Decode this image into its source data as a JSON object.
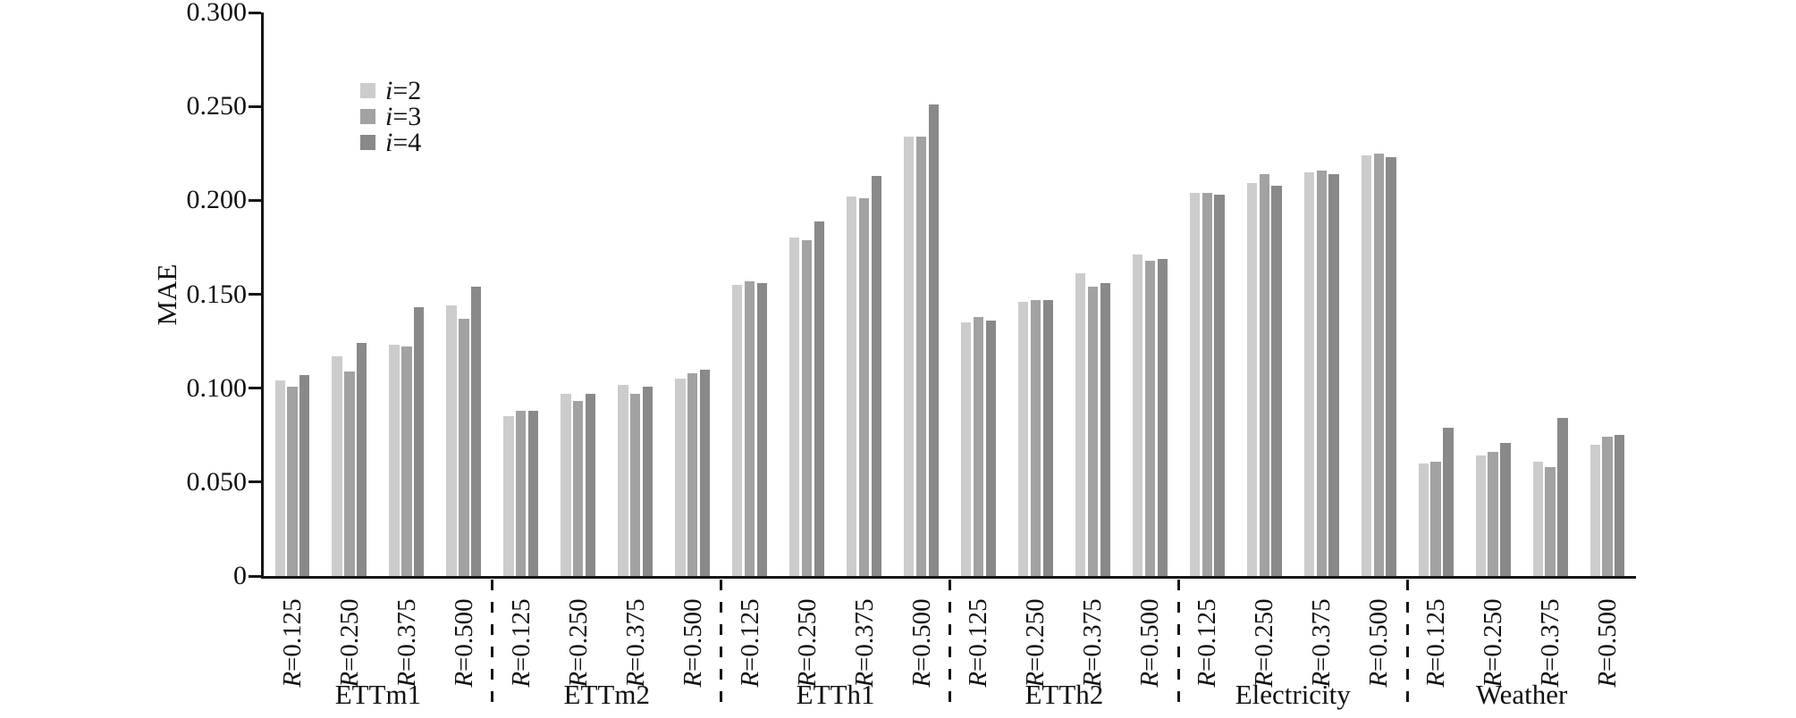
{
  "chart_data": {
    "type": "bar",
    "title": "",
    "ylabel": "MAE",
    "ylim": [
      0,
      0.3
    ],
    "grid": false,
    "y_ticks": [
      {
        "value": 0.0,
        "label": "0"
      },
      {
        "value": 0.05,
        "label": "0.050"
      },
      {
        "value": 0.1,
        "label": "0.100"
      },
      {
        "value": 0.15,
        "label": "0.150"
      },
      {
        "value": 0.2,
        "label": "0.200"
      },
      {
        "value": 0.25,
        "label": "0.250"
      },
      {
        "value": 0.3,
        "label": "0.300"
      }
    ],
    "legend": {
      "position": "inside-top-left",
      "items": [
        "i=2",
        "i=3",
        "i=4"
      ]
    },
    "series": [
      {
        "name": "i=2",
        "color": "#cccccc"
      },
      {
        "name": "i=3",
        "color": "#a2a2a2"
      },
      {
        "name": "i=4",
        "color": "#898989"
      }
    ],
    "categories": [
      "R=0.125",
      "R=0.250",
      "R=0.375",
      "R=0.500"
    ],
    "groups": [
      {
        "label": "ETTm1",
        "values": [
          [
            0.104,
            0.101,
            0.107
          ],
          [
            0.117,
            0.109,
            0.124
          ],
          [
            0.123,
            0.122,
            0.143
          ],
          [
            0.144,
            0.137,
            0.154
          ]
        ]
      },
      {
        "label": "ETTm2",
        "values": [
          [
            0.085,
            0.088,
            0.088
          ],
          [
            0.097,
            0.093,
            0.097
          ],
          [
            0.102,
            0.097,
            0.101
          ],
          [
            0.105,
            0.108,
            0.11
          ]
        ]
      },
      {
        "label": "ETTh1",
        "values": [
          [
            0.155,
            0.157,
            0.156
          ],
          [
            0.18,
            0.179,
            0.189
          ],
          [
            0.202,
            0.201,
            0.213
          ],
          [
            0.234,
            0.234,
            0.251
          ]
        ]
      },
      {
        "label": "ETTh2",
        "values": [
          [
            0.135,
            0.138,
            0.136
          ],
          [
            0.146,
            0.147,
            0.147
          ],
          [
            0.161,
            0.154,
            0.156
          ],
          [
            0.171,
            0.168,
            0.169
          ]
        ]
      },
      {
        "label": "Electricity",
        "values": [
          [
            0.204,
            0.204,
            0.203
          ],
          [
            0.209,
            0.214,
            0.208
          ],
          [
            0.215,
            0.216,
            0.214
          ],
          [
            0.224,
            0.225,
            0.223
          ]
        ]
      },
      {
        "label": "Weather",
        "values": [
          [
            0.06,
            0.061,
            0.079
          ],
          [
            0.064,
            0.066,
            0.071
          ],
          [
            0.061,
            0.058,
            0.084
          ],
          [
            0.07,
            0.074,
            0.075
          ]
        ]
      }
    ],
    "axis_color": "#161616"
  }
}
